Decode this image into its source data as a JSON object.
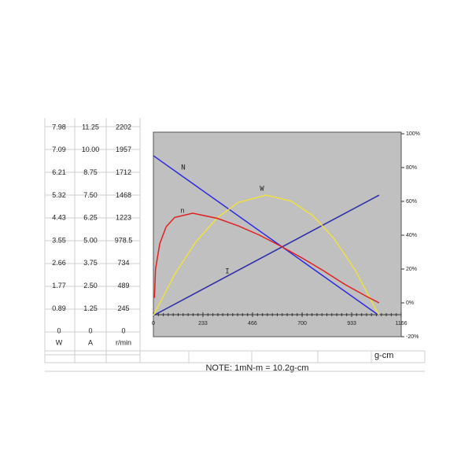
{
  "chart_data": {
    "type": "line",
    "x_label": "g-cm",
    "note": "NOTE: 1mN-m = 10.2g-cm",
    "xlim": [
      0,
      1166
    ],
    "xticks": [
      0,
      233,
      466,
      700,
      933,
      1166
    ],
    "ylim": [
      -20,
      100
    ],
    "yticks": [
      {
        "value": 100,
        "label": "100%"
      },
      {
        "value": 80,
        "label": "80%"
      },
      {
        "value": 60,
        "label": "60%"
      },
      {
        "value": 40,
        "label": "40%"
      },
      {
        "value": 20,
        "label": "20%"
      },
      {
        "value": 0,
        "label": "0%"
      },
      {
        "value": -20,
        "label": "-20%"
      }
    ],
    "left_axes": [
      {
        "unit": "W",
        "ticks": [
          7.98,
          7.09,
          6.21,
          5.32,
          4.43,
          3.55,
          2.66,
          1.77,
          0.89,
          0
        ]
      },
      {
        "unit": "A",
        "ticks": [
          11.25,
          {
            "value": 10,
            "label": "10.00"
          },
          8.75,
          {
            "value": 7.5,
            "label": "7.50"
          },
          6.25,
          {
            "value": 5,
            "label": "5.00"
          },
          3.75,
          {
            "value": 2.5,
            "label": "2.50"
          },
          1.25,
          0
        ]
      },
      {
        "unit": "r/min",
        "ticks": [
          2202,
          1957,
          1712,
          1468,
          1223,
          978.5,
          734,
          489,
          245,
          0
        ]
      }
    ],
    "series": [
      {
        "name": "N",
        "color": "#2a2ae0",
        "x": [
          0,
          1062
        ],
        "values": [
          87,
          -7.5
        ]
      },
      {
        "name": "I",
        "color": "#2b2ba8",
        "x": [
          0,
          1062
        ],
        "values": [
          -7.5,
          63.7
        ]
      },
      {
        "name": "W",
        "color": "#f0e040",
        "x": [
          0,
          100,
          200,
          300,
          400,
          531,
          650,
          750,
          850,
          950,
          1062
        ],
        "values": [
          -7.5,
          16.8,
          36.1,
          50.2,
          59.4,
          63.7,
          60.1,
          51.6,
          38.0,
          19.3,
          -7.5
        ]
      },
      {
        "name": "n",
        "color": "#e02020",
        "x": [
          5,
          10,
          30,
          60,
          100,
          185,
          300,
          400,
          500,
          600,
          700,
          800,
          900,
          1000,
          1062
        ],
        "values": [
          3,
          20,
          35,
          45,
          50.5,
          53,
          50,
          45.5,
          40,
          33.5,
          26.5,
          19,
          11,
          4,
          0
        ]
      }
    ]
  }
}
